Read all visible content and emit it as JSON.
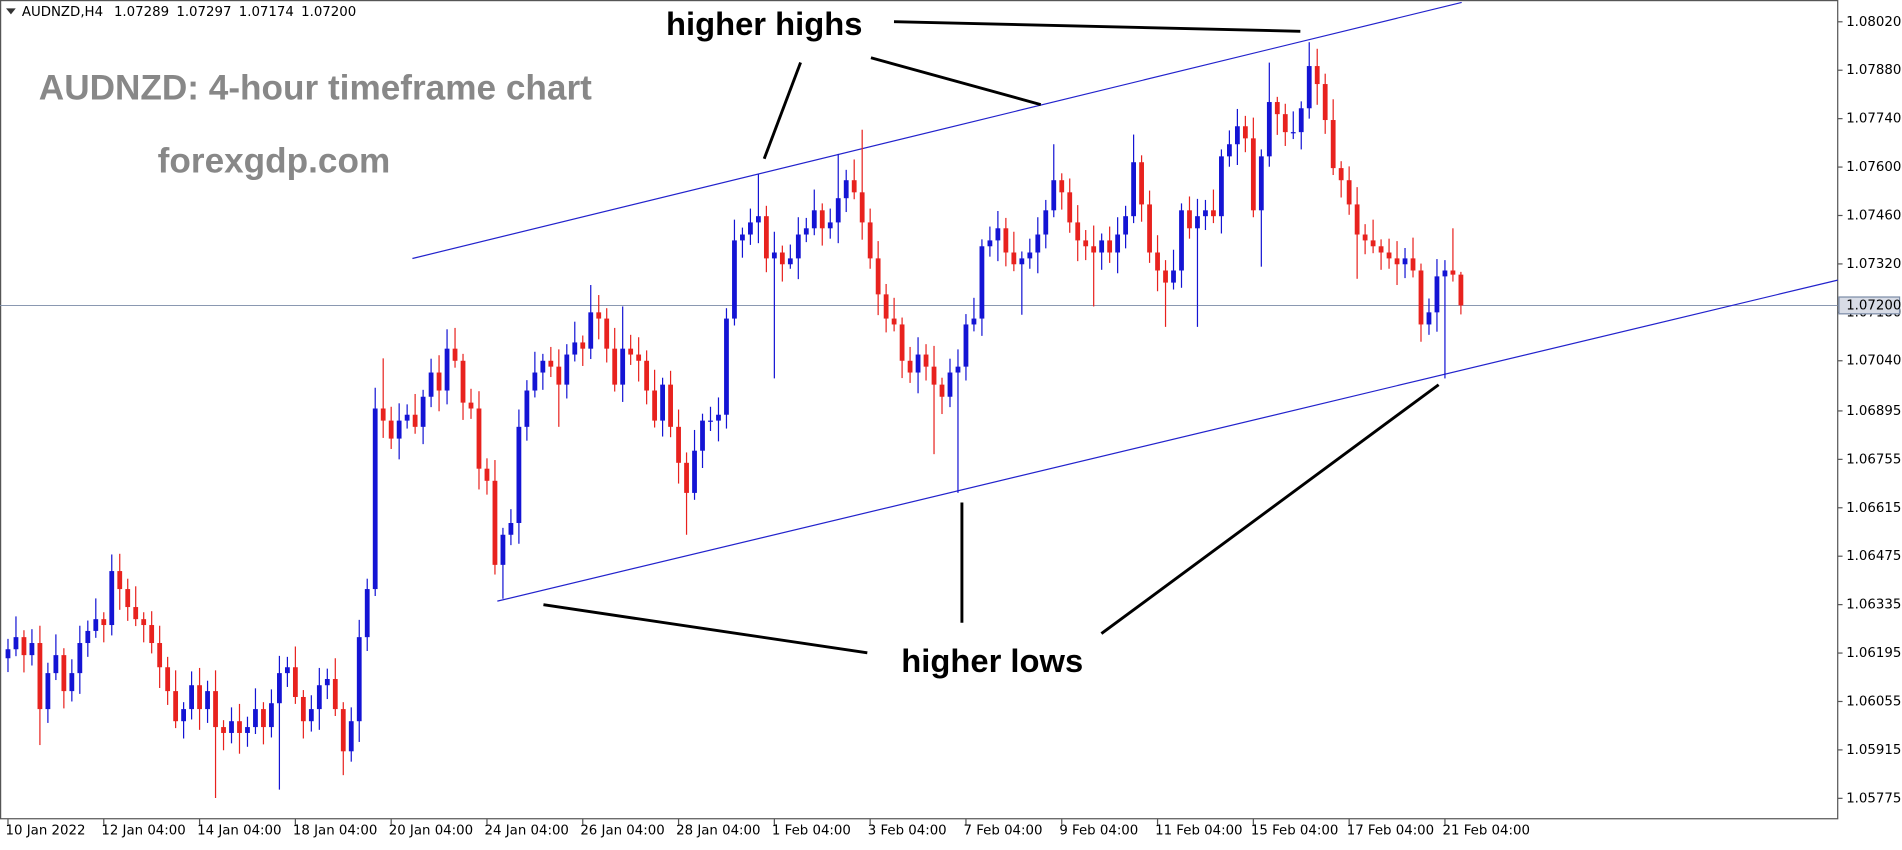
{
  "chart_data": {
    "type": "candlestick",
    "symbol": "AUDNZD,H4",
    "ohlc_labels": [
      "1.07289",
      "1.07297",
      "1.07174",
      "1.07200"
    ],
    "title": "AUDNZD: 4-hour timeframe chart",
    "subtitle": "forexgdp.com",
    "annotations": [
      "higher highs",
      "higher lows"
    ],
    "up_color": "#1414d4",
    "down_color": "#e8221e",
    "current_price": {
      "value": 1.072,
      "label": "1.07200"
    },
    "xlim": [
      -1,
      229.2
    ],
    "xticks": [
      {
        "value": 0,
        "label": "10 Jan 2022"
      },
      {
        "value": 12,
        "label": "12 Jan 04:00"
      },
      {
        "value": 24,
        "label": "14 Jan 04:00"
      },
      {
        "value": 36,
        "label": "18 Jan 04:00"
      },
      {
        "value": 48,
        "label": "20 Jan 04:00"
      },
      {
        "value": 60,
        "label": "24 Jan 04:00"
      },
      {
        "value": 72,
        "label": "26 Jan 04:00"
      },
      {
        "value": 84,
        "label": "28 Jan 04:00"
      },
      {
        "value": 96,
        "label": "1 Feb 04:00"
      },
      {
        "value": 108,
        "label": "3 Feb 04:00"
      },
      {
        "value": 120,
        "label": "7 Feb 04:00"
      },
      {
        "value": 132,
        "label": "9 Feb 04:00"
      },
      {
        "value": 144,
        "label": "11 Feb 04:00"
      },
      {
        "value": 156,
        "label": "15 Feb 04:00"
      },
      {
        "value": 168,
        "label": "17 Feb 04:00"
      },
      {
        "value": 180,
        "label": "21 Feb 04:00"
      }
    ],
    "ylim": [
      1.05716,
      1.08083
    ],
    "yticks": [
      {
        "value": 1.0802,
        "label": "1.08020"
      },
      {
        "value": 1.0788,
        "label": "1.07880"
      },
      {
        "value": 1.0774,
        "label": "1.07740"
      },
      {
        "value": 1.076,
        "label": "1.07600"
      },
      {
        "value": 1.0746,
        "label": "1.07460"
      },
      {
        "value": 1.0732,
        "label": "1.07320"
      },
      {
        "value": 1.0718,
        "label": "1.07180"
      },
      {
        "value": 1.0704,
        "label": "1.07040"
      },
      1.06895,
      1.06755,
      1.06615,
      1.06475,
      1.06335,
      1.06195,
      1.06055,
      1.05915,
      1.05775
    ],
    "ohlc": [
      [
        1.0618,
        1.06236,
        1.0614,
        1.06206
      ],
      [
        1.06206,
        1.06301,
        1.06186,
        1.06241
      ],
      [
        1.06241,
        1.06261,
        1.06139,
        1.06189
      ],
      [
        1.06189,
        1.06264,
        1.06159,
        1.06224
      ],
      [
        1.06224,
        1.06274,
        1.05929,
        1.06033
      ],
      [
        1.06033,
        1.06167,
        1.05993,
        1.06137
      ],
      [
        1.06137,
        1.06249,
        1.06117,
        1.06189
      ],
      [
        1.06189,
        1.06209,
        1.06035,
        1.06085
      ],
      [
        1.06085,
        1.06177,
        1.06055,
        1.06137
      ],
      [
        1.06137,
        1.06274,
        1.06077,
        1.06224
      ],
      [
        1.06224,
        1.06289,
        1.06184,
        1.06259
      ],
      [
        1.06259,
        1.06353,
        1.06239,
        1.06293
      ],
      [
        1.06293,
        1.06313,
        1.06226,
        1.06276
      ],
      [
        1.06276,
        1.0648,
        1.06246,
        1.06432
      ],
      [
        1.06432,
        1.06482,
        1.0632,
        1.0638
      ],
      [
        1.0638,
        1.0641,
        1.06288,
        1.06328
      ],
      [
        1.06328,
        1.06388,
        1.06273,
        1.06293
      ],
      [
        1.06293,
        1.06313,
        1.06226,
        1.06276
      ],
      [
        1.06276,
        1.06316,
        1.06194,
        1.06224
      ],
      [
        1.06224,
        1.06274,
        1.06094,
        1.06154
      ],
      [
        1.06154,
        1.06184,
        1.06045,
        1.06085
      ],
      [
        1.06085,
        1.06145,
        1.05978,
        1.05998
      ],
      [
        1.05998,
        1.06053,
        1.05948,
        1.06033
      ],
      [
        1.06033,
        1.06142,
        1.06003,
        1.06102
      ],
      [
        1.06102,
        1.06152,
        1.05973,
        1.06033
      ],
      [
        1.06033,
        1.06115,
        1.05993,
        1.06085
      ],
      [
        1.06085,
        1.06145,
        1.05776,
        1.05981
      ],
      [
        1.05981,
        1.06001,
        1.05914,
        1.05964
      ],
      [
        1.05964,
        1.06038,
        1.05934,
        1.05998
      ],
      [
        1.05998,
        1.06048,
        1.05904,
        1.05964
      ],
      [
        1.05964,
        1.06011,
        1.05924,
        1.05981
      ],
      [
        1.05981,
        1.06093,
        1.05961,
        1.06033
      ],
      [
        1.06033,
        1.06053,
        1.05931,
        1.05981
      ],
      [
        1.05981,
        1.0609,
        1.05951,
        1.0605
      ],
      [
        1.0605,
        1.06187,
        1.058,
        1.06137
      ],
      [
        1.06137,
        1.06184,
        1.06097,
        1.06154
      ],
      [
        1.06154,
        1.06214,
        1.06048,
        1.06068
      ],
      [
        1.06068,
        1.06088,
        1.05948,
        1.05998
      ],
      [
        1.05998,
        1.06073,
        1.05968,
        1.06033
      ],
      [
        1.06033,
        1.06152,
        1.05973,
        1.06102
      ],
      [
        1.06102,
        1.0615,
        1.06062,
        1.0612
      ],
      [
        1.0612,
        1.0618,
        1.06013,
        1.06033
      ],
      [
        1.06033,
        1.06053,
        1.05842,
        1.05911
      ],
      [
        1.05911,
        1.06038,
        1.05881,
        1.05998
      ],
      [
        1.05998,
        1.06291,
        1.05938,
        1.06241
      ],
      [
        1.06241,
        1.0641,
        1.06201,
        1.0638
      ],
      [
        1.0638,
        1.06962,
        1.0636,
        1.06902
      ],
      [
        1.06902,
        1.07047,
        1.06817,
        1.06867
      ],
      [
        1.06867,
        1.06907,
        1.06785,
        1.06815
      ],
      [
        1.06815,
        1.06917,
        1.06755,
        1.06867
      ],
      [
        1.06867,
        1.06914,
        1.06844,
        1.06884
      ],
      [
        1.06884,
        1.06944,
        1.06829,
        1.06849
      ],
      [
        1.06849,
        1.06956,
        1.06799,
        1.06936
      ],
      [
        1.06936,
        1.07046,
        1.06906,
        1.07006
      ],
      [
        1.07006,
        1.07056,
        1.06894,
        1.06954
      ],
      [
        1.06954,
        1.07131,
        1.06914,
        1.07075
      ],
      [
        1.07075,
        1.07135,
        1.0702,
        1.0704
      ],
      [
        1.0704,
        1.0706,
        1.06869,
        1.06919
      ],
      [
        1.06919,
        1.06959,
        1.06872,
        1.06902
      ],
      [
        1.06902,
        1.06952,
        1.06668,
        1.06728
      ],
      [
        1.06728,
        1.06758,
        1.06653,
        1.06693
      ],
      [
        1.06693,
        1.06753,
        1.06422,
        1.0645
      ],
      [
        1.0645,
        1.06557,
        1.06352,
        1.06537
      ],
      [
        1.06537,
        1.06611,
        1.06507,
        1.06571
      ],
      [
        1.06571,
        1.06899,
        1.06511,
        1.06849
      ],
      [
        1.06849,
        1.06984,
        1.06809,
        1.06954
      ],
      [
        1.06954,
        1.07066,
        1.06934,
        1.07006
      ],
      [
        1.07006,
        1.0706,
        1.06956,
        1.0704
      ],
      [
        1.0704,
        1.0708,
        1.06993,
        1.07023
      ],
      [
        1.07023,
        1.07073,
        1.06849,
        1.06971
      ],
      [
        1.06971,
        1.07088,
        1.06931,
        1.07058
      ],
      [
        1.07058,
        1.07153,
        1.07038,
        1.07093
      ],
      [
        1.07093,
        1.07113,
        1.07025,
        1.07075
      ],
      [
        1.07075,
        1.07259,
        1.07045,
        1.0718
      ],
      [
        1.0718,
        1.0723,
        1.07102,
        1.07162
      ],
      [
        1.07162,
        1.07192,
        1.07035,
        1.07075
      ],
      [
        1.07075,
        1.07135,
        1.06951,
        1.06971
      ],
      [
        1.06971,
        1.07197,
        1.06921,
        1.07075
      ],
      [
        1.07075,
        1.07115,
        1.07028,
        1.07058
      ],
      [
        1.07058,
        1.07108,
        1.0698,
        1.0704
      ],
      [
        1.0704,
        1.0707,
        1.06914,
        1.06954
      ],
      [
        1.06954,
        1.07014,
        1.06847,
        1.06867
      ],
      [
        1.06867,
        1.06991,
        1.06821,
        1.06971
      ],
      [
        1.06971,
        1.07011,
        1.06819,
        1.06849
      ],
      [
        1.06849,
        1.06899,
        1.06685,
        1.06745
      ],
      [
        1.06745,
        1.06775,
        1.06537,
        1.06658
      ],
      [
        1.06658,
        1.0684,
        1.06638,
        1.0678
      ],
      [
        1.0678,
        1.06887,
        1.0673,
        1.06867
      ],
      [
        1.06867,
        1.06907,
        1.06837,
        1.06867
      ],
      [
        1.06867,
        1.06934,
        1.06807,
        1.06884
      ],
      [
        1.06884,
        1.07192,
        1.06844,
        1.07162
      ],
      [
        1.07162,
        1.07448,
        1.07142,
        1.07388
      ],
      [
        1.07388,
        1.07425,
        1.07338,
        1.07405
      ],
      [
        1.07405,
        1.0748,
        1.07375,
        1.0744
      ],
      [
        1.0744,
        1.07579,
        1.0738,
        1.07458
      ],
      [
        1.07458,
        1.07488,
        1.07296,
        1.07336
      ],
      [
        1.07336,
        1.07413,
        1.06989,
        1.07353
      ],
      [
        1.07353,
        1.07373,
        1.07269,
        1.07319
      ],
      [
        1.07319,
        1.07376,
        1.07306,
        1.07336
      ],
      [
        1.07336,
        1.07455,
        1.07276,
        1.07405
      ],
      [
        1.07405,
        1.07453,
        1.07383,
        1.07423
      ],
      [
        1.07423,
        1.07535,
        1.07403,
        1.07475
      ],
      [
        1.07475,
        1.07495,
        1.07373,
        1.07423
      ],
      [
        1.07423,
        1.0748,
        1.07393,
        1.0744
      ],
      [
        1.0744,
        1.07638,
        1.0738,
        1.0751
      ],
      [
        1.0751,
        1.07592,
        1.0747,
        1.07562
      ],
      [
        1.07562,
        1.07622,
        1.07507,
        1.07527
      ],
      [
        1.07527,
        1.07708,
        1.0739,
        1.0744
      ],
      [
        1.0744,
        1.0748,
        1.07306,
        1.07336
      ],
      [
        1.07336,
        1.07386,
        1.07172,
        1.07232
      ],
      [
        1.07232,
        1.07262,
        1.07122,
        1.07162
      ],
      [
        1.07162,
        1.07222,
        1.07125,
        1.07145
      ],
      [
        1.07145,
        1.07165,
        1.0699,
        1.0704
      ],
      [
        1.0704,
        1.0708,
        1.06976,
        1.07006
      ],
      [
        1.07006,
        1.07108,
        1.06946,
        1.07058
      ],
      [
        1.07058,
        1.07088,
        1.06983,
        1.07023
      ],
      [
        1.07023,
        1.07083,
        1.0677,
        1.06971
      ],
      [
        1.06971,
        1.06991,
        1.06886,
        1.06936
      ],
      [
        1.06936,
        1.07046,
        1.06906,
        1.07006
      ],
      [
        1.07006,
        1.07073,
        1.06658,
        1.07023
      ],
      [
        1.07023,
        1.07175,
        1.06983,
        1.07145
      ],
      [
        1.07145,
        1.07222,
        1.07125,
        1.07162
      ],
      [
        1.07162,
        1.07391,
        1.07112,
        1.07371
      ],
      [
        1.07371,
        1.07428,
        1.07341,
        1.07388
      ],
      [
        1.07388,
        1.07473,
        1.07328,
        1.07423
      ],
      [
        1.07423,
        1.07453,
        1.07313,
        1.07353
      ],
      [
        1.07353,
        1.07413,
        1.07299,
        1.07319
      ],
      [
        1.07319,
        1.07356,
        1.07173,
        1.07336
      ],
      [
        1.07336,
        1.07393,
        1.07306,
        1.07353
      ],
      [
        1.07353,
        1.07455,
        1.07293,
        1.07405
      ],
      [
        1.07405,
        1.07505,
        1.07365,
        1.07475
      ],
      [
        1.07475,
        1.07666,
        1.07455,
        1.07562
      ],
      [
        1.07562,
        1.07582,
        1.07477,
        1.07527
      ],
      [
        1.07527,
        1.07567,
        1.0741,
        1.0744
      ],
      [
        1.0744,
        1.0749,
        1.07328,
        1.07388
      ],
      [
        1.07388,
        1.07418,
        1.07331,
        1.07371
      ],
      [
        1.07371,
        1.07431,
        1.07197,
        1.07353
      ],
      [
        1.07353,
        1.07408,
        1.07303,
        1.07388
      ],
      [
        1.07388,
        1.07428,
        1.07323,
        1.07353
      ],
      [
        1.07353,
        1.07455,
        1.07293,
        1.07405
      ],
      [
        1.07405,
        1.07488,
        1.07365,
        1.07458
      ],
      [
        1.07458,
        1.07694,
        1.07438,
        1.07614
      ],
      [
        1.07614,
        1.07634,
        1.07442,
        1.07492
      ],
      [
        1.07492,
        1.07532,
        1.07323,
        1.07353
      ],
      [
        1.07353,
        1.07403,
        1.07241,
        1.07301
      ],
      [
        1.07301,
        1.07331,
        1.07138,
        1.07266
      ],
      [
        1.07266,
        1.07361,
        1.07246,
        1.07301
      ],
      [
        1.07301,
        1.07495,
        1.07251,
        1.07475
      ],
      [
        1.07475,
        1.07515,
        1.07393,
        1.07423
      ],
      [
        1.07423,
        1.07508,
        1.07138,
        1.07458
      ],
      [
        1.07458,
        1.07505,
        1.07418,
        1.07475
      ],
      [
        1.07475,
        1.07535,
        1.07438,
        1.07458
      ],
      [
        1.07458,
        1.07651,
        1.07408,
        1.07631
      ],
      [
        1.07631,
        1.07706,
        1.07601,
        1.07666
      ],
      [
        1.07666,
        1.07768,
        1.07606,
        1.07718
      ],
      [
        1.07718,
        1.07748,
        1.07643,
        1.07683
      ],
      [
        1.07683,
        1.07743,
        1.07455,
        1.07475
      ],
      [
        1.07475,
        1.07651,
        1.07312,
        1.07631
      ],
      [
        1.07631,
        1.07902,
        1.07601,
        1.07788
      ],
      [
        1.07788,
        1.07803,
        1.07693,
        1.07753
      ],
      [
        1.07753,
        1.07783,
        1.07661,
        1.07701
      ],
      [
        1.07701,
        1.07761,
        1.07681,
        1.07701
      ],
      [
        1.07701,
        1.0779,
        1.07651,
        1.0777
      ],
      [
        1.0777,
        1.07961,
        1.0774,
        1.07892
      ],
      [
        1.07892,
        1.07942,
        1.0778,
        1.0784
      ],
      [
        1.0784,
        1.0787,
        1.07696,
        1.07736
      ],
      [
        1.07736,
        1.07796,
        1.07577,
        1.07597
      ],
      [
        1.07597,
        1.07617,
        1.07512,
        1.07562
      ],
      [
        1.07562,
        1.07602,
        1.07462,
        1.07492
      ],
      [
        1.07492,
        1.07542,
        1.07277,
        1.07405
      ],
      [
        1.07405,
        1.07435,
        1.07348,
        1.07388
      ],
      [
        1.07388,
        1.07448,
        1.07351,
        1.07371
      ],
      [
        1.07371,
        1.07391,
        1.07303,
        1.07353
      ],
      [
        1.07353,
        1.07393,
        1.07306,
        1.07336
      ],
      [
        1.07336,
        1.07386,
        1.07259,
        1.07319
      ],
      [
        1.07319,
        1.07366,
        1.07279,
        1.07336
      ],
      [
        1.07336,
        1.07396,
        1.07281,
        1.07301
      ],
      [
        1.07301,
        1.07321,
        1.07095,
        1.07145
      ],
      [
        1.07145,
        1.0722,
        1.07115,
        1.0718
      ],
      [
        1.0718,
        1.07334,
        1.07124,
        1.07284
      ],
      [
        1.07284,
        1.07331,
        1.06989,
        1.07301
      ],
      [
        1.07301,
        1.07423,
        1.07269,
        1.07289
      ],
      [
        1.07289,
        1.07297,
        1.07174,
        1.072
      ]
    ]
  }
}
